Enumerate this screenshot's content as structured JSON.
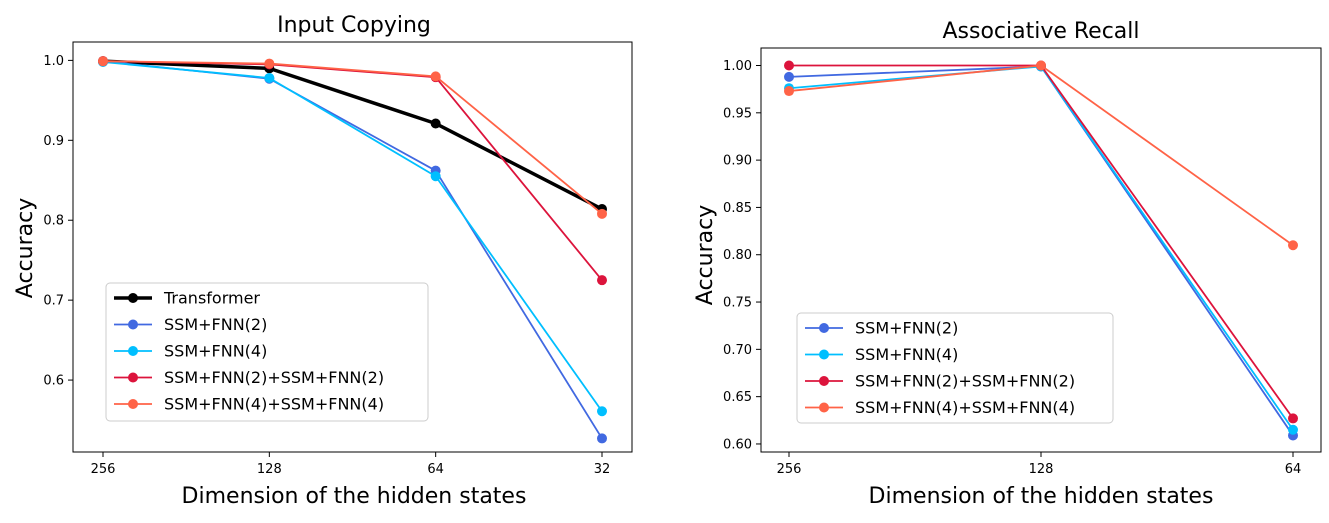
{
  "chart_data": [
    {
      "type": "line",
      "title": "Input Copying",
      "xlabel": "Dimension of the hidden states",
      "ylabel": "Accuracy",
      "categories": [
        "256",
        "128",
        "64",
        "32"
      ],
      "ylim": [
        0.51,
        1.023
      ],
      "yticks": [
        "0.6",
        "0.7",
        "0.8",
        "0.9",
        "1.0"
      ],
      "grid": false,
      "legend_position": "lower-left",
      "series": [
        {
          "name": "Transformer",
          "color": "#000000",
          "values": [
            0.999,
            0.99,
            0.921,
            0.814
          ]
        },
        {
          "name": "SSM+FNN(2)",
          "color": "#4169e1",
          "values": [
            0.999,
            0.977,
            0.862,
            0.527
          ]
        },
        {
          "name": "SSM+FNN(4)",
          "color": "#00bfff",
          "values": [
            0.998,
            0.978,
            0.855,
            0.561
          ]
        },
        {
          "name": "SSM+FNN(2)+SSM+FNN(2)",
          "color": "#dc143c",
          "values": [
            0.999,
            0.995,
            0.979,
            0.725
          ]
        },
        {
          "name": "SSM+FNN(4)+SSM+FNN(4)",
          "color": "#ff6347",
          "values": [
            0.999,
            0.996,
            0.98,
            0.808
          ]
        }
      ]
    },
    {
      "type": "line",
      "title": "Associative Recall",
      "xlabel": "Dimension of the hidden states",
      "ylabel": "Accuracy",
      "categories": [
        "256",
        "128",
        "64"
      ],
      "ylim": [
        0.5915,
        1.0185
      ],
      "yticks": [
        "0.60",
        "0.65",
        "0.70",
        "0.75",
        "0.80",
        "0.85",
        "0.90",
        "0.95",
        "1.00"
      ],
      "grid": false,
      "legend_position": "lower-left",
      "series": [
        {
          "name": "SSM+FNN(2)",
          "color": "#4169e1",
          "values": [
            0.988,
            0.999,
            0.609
          ]
        },
        {
          "name": "SSM+FNN(4)",
          "color": "#00bfff",
          "values": [
            0.976,
            0.999,
            0.615
          ]
        },
        {
          "name": "SSM+FNN(2)+SSM+FNN(2)",
          "color": "#dc143c",
          "values": [
            1.0,
            1.0,
            0.627
          ]
        },
        {
          "name": "SSM+FNN(4)+SSM+FNN(4)",
          "color": "#ff6347",
          "values": [
            0.973,
            1.0,
            0.81
          ]
        }
      ]
    }
  ]
}
